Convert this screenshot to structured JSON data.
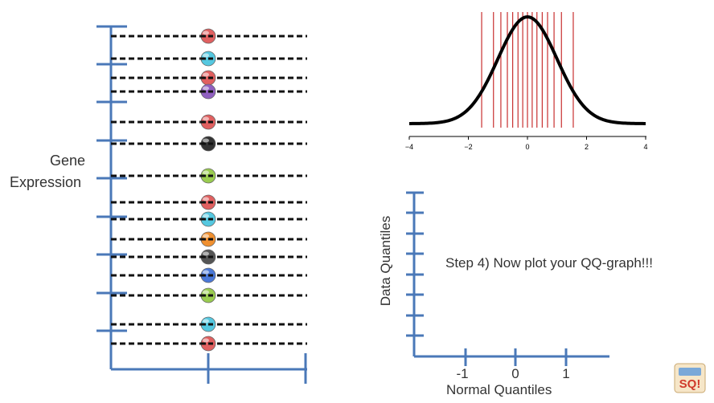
{
  "left_panel": {
    "y_label_line1": "Gene",
    "y_label_line2": "Expression",
    "points": [
      {
        "color": "#e06060"
      },
      {
        "color": "#55c8e0"
      },
      {
        "color": "#e06060"
      },
      {
        "color": "#9060c0"
      },
      {
        "color": "#e06060"
      },
      {
        "color": "#333333"
      },
      {
        "color": "#9acc50"
      },
      {
        "color": "#e06060"
      },
      {
        "color": "#55c8e0"
      },
      {
        "color": "#f09030"
      },
      {
        "color": "#555555"
      },
      {
        "color": "#4a78d8"
      },
      {
        "color": "#9acc50"
      },
      {
        "color": "#55c8e0"
      },
      {
        "color": "#e06060"
      }
    ]
  },
  "normal_curve": {
    "x_ticks": [
      "−4",
      "−2",
      "0",
      "2",
      "4"
    ],
    "quantile_lines": [
      -1.55,
      -1.15,
      -0.9,
      -0.68,
      -0.5,
      -0.32,
      -0.16,
      0,
      0.16,
      0.32,
      0.5,
      0.68,
      0.9,
      1.15,
      1.55
    ],
    "line_color": "#c83030"
  },
  "qq_plot": {
    "x_label": "Normal Quantiles",
    "y_label": "Data Quantiles",
    "x_ticks": [
      "-1",
      "0",
      "1"
    ],
    "axis_color": "#4a78b8"
  },
  "step_text": "Step 4) Now plot your QQ-graph!!!",
  "logo_text": "SQ!"
}
